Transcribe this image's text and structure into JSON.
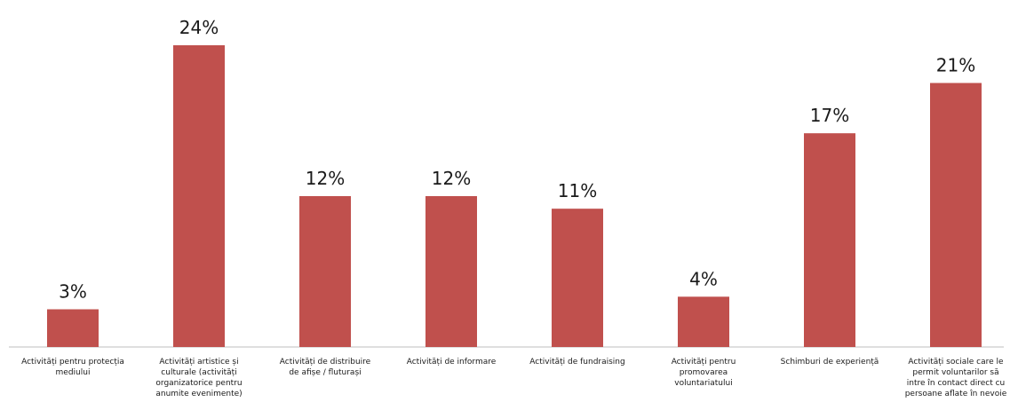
{
  "chart_data": {
    "type": "bar",
    "categories": [
      [
        "Activități pentru protecția",
        "mediului"
      ],
      [
        "Activități artistice și",
        "culturale (activități",
        "organizatorice pentru",
        "anumite evenimente)"
      ],
      [
        "Activități de distribuire",
        "de afișe / fluturași"
      ],
      [
        "Activități de informare"
      ],
      [
        "Activități de fundraising"
      ],
      [
        "Activități pentru",
        "promovarea",
        "voluntariatului"
      ],
      [
        "Schimburi de experiență"
      ],
      [
        "Activități sociale care le",
        "permit voluntarilor să",
        "intre în contact direct cu",
        "persoane aflate în nevoie"
      ]
    ],
    "values": [
      3,
      24,
      12,
      12,
      11,
      4,
      17,
      21
    ],
    "value_labels": [
      "3%",
      "24%",
      "12%",
      "12%",
      "11%",
      "4%",
      "17%",
      "21%"
    ],
    "ylim": [
      0,
      24
    ],
    "bar_color": "#c0504d",
    "axis_color": "#bfbfbf",
    "grid": false,
    "legend": "none"
  }
}
